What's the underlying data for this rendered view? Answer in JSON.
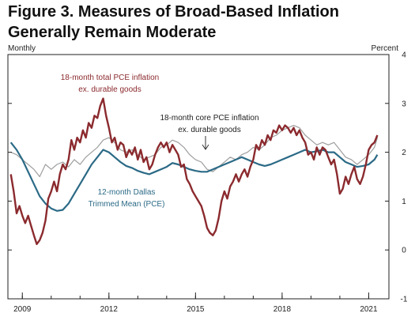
{
  "title_line1": "Figure 3. Measures of Broad-Based Inflation",
  "title_line2": "Generally Remain Moderate",
  "chart_data": {
    "type": "line",
    "left_unit": "Monthly",
    "right_unit": "Percent",
    "xlim": [
      2008.5,
      2021.7
    ],
    "ylim": [
      -1,
      4
    ],
    "y_ticks": [
      "4",
      "3",
      "2",
      "1",
      "0",
      "-1"
    ],
    "x_ticks": [
      {
        "label": "2009",
        "value": 2009.0
      },
      {
        "label": "2012",
        "value": 2012.0
      },
      {
        "label": "2015",
        "value": 2015.0
      },
      {
        "label": "2018",
        "value": 2018.0
      },
      {
        "label": "2021",
        "value": 2021.0
      }
    ],
    "annotations": {
      "total": [
        "18-month total PCE inflation",
        "ex. durable goods"
      ],
      "core": [
        "18-month core PCE inflation",
        "ex. durable goods"
      ],
      "dallas": [
        "12-month Dallas",
        "Trimmed Mean (PCE)"
      ]
    },
    "colors": {
      "total": "#8b2a2e",
      "core": "#9e9e9e",
      "dallas": "#2b6a86",
      "axis": "#222222"
    },
    "series": [
      {
        "key": "total",
        "points": [
          [
            2008.6,
            1.55
          ],
          [
            2008.7,
            1.2
          ],
          [
            2008.8,
            0.75
          ],
          [
            2008.9,
            0.9
          ],
          [
            2009.0,
            0.7
          ],
          [
            2009.1,
            0.55
          ],
          [
            2009.2,
            0.7
          ],
          [
            2009.3,
            0.5
          ],
          [
            2009.4,
            0.3
          ],
          [
            2009.5,
            0.12
          ],
          [
            2009.6,
            0.2
          ],
          [
            2009.7,
            0.35
          ],
          [
            2009.8,
            0.6
          ],
          [
            2009.9,
            1.05
          ],
          [
            2010.0,
            1.2
          ],
          [
            2010.1,
            1.4
          ],
          [
            2010.2,
            1.2
          ],
          [
            2010.3,
            1.55
          ],
          [
            2010.4,
            1.75
          ],
          [
            2010.5,
            1.65
          ],
          [
            2010.6,
            1.85
          ],
          [
            2010.7,
            2.25
          ],
          [
            2010.8,
            2.05
          ],
          [
            2010.9,
            2.3
          ],
          [
            2011.0,
            2.2
          ],
          [
            2011.1,
            2.45
          ],
          [
            2011.2,
            2.3
          ],
          [
            2011.3,
            2.6
          ],
          [
            2011.4,
            2.5
          ],
          [
            2011.5,
            2.75
          ],
          [
            2011.6,
            2.7
          ],
          [
            2011.7,
            2.95
          ],
          [
            2011.8,
            3.1
          ],
          [
            2011.9,
            2.75
          ],
          [
            2012.0,
            2.5
          ],
          [
            2012.1,
            2.2
          ],
          [
            2012.2,
            2.3
          ],
          [
            2012.3,
            2.05
          ],
          [
            2012.4,
            2.2
          ],
          [
            2012.5,
            2.15
          ],
          [
            2012.6,
            1.9
          ],
          [
            2012.7,
            2.05
          ],
          [
            2012.8,
            1.95
          ],
          [
            2012.9,
            2.1
          ],
          [
            2013.0,
            1.85
          ],
          [
            2013.1,
            2.05
          ],
          [
            2013.2,
            1.8
          ],
          [
            2013.3,
            1.9
          ],
          [
            2013.4,
            1.65
          ],
          [
            2013.5,
            1.75
          ],
          [
            2013.6,
            1.95
          ],
          [
            2013.7,
            2.1
          ],
          [
            2013.8,
            2.2
          ],
          [
            2013.9,
            2.1
          ],
          [
            2014.0,
            2.2
          ],
          [
            2014.1,
            2.0
          ],
          [
            2014.2,
            2.15
          ],
          [
            2014.3,
            2.05
          ],
          [
            2014.4,
            1.95
          ],
          [
            2014.5,
            1.7
          ],
          [
            2014.6,
            1.75
          ],
          [
            2014.7,
            1.45
          ],
          [
            2014.8,
            1.35
          ],
          [
            2014.9,
            1.2
          ],
          [
            2015.0,
            1.1
          ],
          [
            2015.1,
            1.0
          ],
          [
            2015.2,
            0.9
          ],
          [
            2015.3,
            0.7
          ],
          [
            2015.4,
            0.45
          ],
          [
            2015.5,
            0.35
          ],
          [
            2015.6,
            0.3
          ],
          [
            2015.7,
            0.4
          ],
          [
            2015.8,
            0.65
          ],
          [
            2015.9,
            1.0
          ],
          [
            2016.0,
            1.2
          ],
          [
            2016.1,
            1.05
          ],
          [
            2016.2,
            1.3
          ],
          [
            2016.3,
            1.4
          ],
          [
            2016.4,
            1.55
          ],
          [
            2016.5,
            1.4
          ],
          [
            2016.6,
            1.55
          ],
          [
            2016.7,
            1.65
          ],
          [
            2016.8,
            1.5
          ],
          [
            2016.9,
            1.7
          ],
          [
            2017.0,
            1.85
          ],
          [
            2017.1,
            2.15
          ],
          [
            2017.2,
            2.05
          ],
          [
            2017.3,
            2.25
          ],
          [
            2017.4,
            2.15
          ],
          [
            2017.5,
            2.35
          ],
          [
            2017.6,
            2.25
          ],
          [
            2017.7,
            2.45
          ],
          [
            2017.8,
            2.4
          ],
          [
            2017.9,
            2.55
          ],
          [
            2018.0,
            2.45
          ],
          [
            2018.1,
            2.55
          ],
          [
            2018.2,
            2.5
          ],
          [
            2018.3,
            2.4
          ],
          [
            2018.4,
            2.5
          ],
          [
            2018.5,
            2.35
          ],
          [
            2018.6,
            2.45
          ],
          [
            2018.7,
            2.3
          ],
          [
            2018.8,
            2.2
          ],
          [
            2018.9,
            1.95
          ],
          [
            2019.0,
            2.0
          ],
          [
            2019.1,
            1.85
          ],
          [
            2019.2,
            2.1
          ],
          [
            2019.3,
            1.95
          ],
          [
            2019.4,
            2.1
          ],
          [
            2019.5,
            2.05
          ],
          [
            2019.6,
            1.9
          ],
          [
            2019.7,
            1.75
          ],
          [
            2019.8,
            1.85
          ],
          [
            2019.9,
            1.55
          ],
          [
            2020.0,
            1.15
          ],
          [
            2020.1,
            1.25
          ],
          [
            2020.2,
            1.5
          ],
          [
            2020.3,
            1.35
          ],
          [
            2020.4,
            1.55
          ],
          [
            2020.5,
            1.7
          ],
          [
            2020.6,
            1.45
          ],
          [
            2020.7,
            1.35
          ],
          [
            2020.8,
            1.5
          ],
          [
            2020.9,
            1.75
          ],
          [
            2021.0,
            2.05
          ],
          [
            2021.1,
            2.15
          ],
          [
            2021.2,
            2.2
          ],
          [
            2021.3,
            2.35
          ]
        ]
      },
      {
        "key": "core",
        "points": [
          [
            2008.6,
            2.0
          ],
          [
            2008.8,
            1.95
          ],
          [
            2009.0,
            1.85
          ],
          [
            2009.2,
            1.75
          ],
          [
            2009.4,
            1.65
          ],
          [
            2009.6,
            1.5
          ],
          [
            2009.8,
            1.75
          ],
          [
            2010.0,
            1.65
          ],
          [
            2010.2,
            1.75
          ],
          [
            2010.4,
            1.8
          ],
          [
            2010.6,
            1.7
          ],
          [
            2010.8,
            1.85
          ],
          [
            2011.0,
            1.75
          ],
          [
            2011.2,
            1.9
          ],
          [
            2011.4,
            2.0
          ],
          [
            2011.6,
            2.1
          ],
          [
            2011.8,
            2.25
          ],
          [
            2012.0,
            2.3
          ],
          [
            2012.2,
            2.2
          ],
          [
            2012.4,
            2.05
          ],
          [
            2012.6,
            2.0
          ],
          [
            2012.8,
            2.05
          ],
          [
            2013.0,
            1.95
          ],
          [
            2013.2,
            1.85
          ],
          [
            2013.4,
            1.9
          ],
          [
            2013.6,
            1.95
          ],
          [
            2013.8,
            2.1
          ],
          [
            2014.0,
            2.15
          ],
          [
            2014.2,
            2.25
          ],
          [
            2014.4,
            2.2
          ],
          [
            2014.6,
            2.1
          ],
          [
            2014.8,
            1.95
          ],
          [
            2015.0,
            1.85
          ],
          [
            2015.2,
            1.8
          ],
          [
            2015.4,
            1.65
          ],
          [
            2015.6,
            1.6
          ],
          [
            2015.8,
            1.7
          ],
          [
            2016.0,
            1.8
          ],
          [
            2016.2,
            1.9
          ],
          [
            2016.4,
            1.85
          ],
          [
            2016.6,
            1.95
          ],
          [
            2016.8,
            2.0
          ],
          [
            2017.0,
            2.1
          ],
          [
            2017.2,
            2.05
          ],
          [
            2017.4,
            2.15
          ],
          [
            2017.6,
            2.3
          ],
          [
            2017.8,
            2.35
          ],
          [
            2018.0,
            2.45
          ],
          [
            2018.2,
            2.5
          ],
          [
            2018.4,
            2.55
          ],
          [
            2018.6,
            2.5
          ],
          [
            2018.8,
            2.35
          ],
          [
            2019.0,
            2.25
          ],
          [
            2019.2,
            2.15
          ],
          [
            2019.4,
            2.2
          ],
          [
            2019.6,
            2.15
          ],
          [
            2019.8,
            2.2
          ],
          [
            2020.0,
            2.05
          ],
          [
            2020.2,
            1.9
          ],
          [
            2020.4,
            1.85
          ],
          [
            2020.6,
            1.75
          ],
          [
            2020.8,
            1.85
          ],
          [
            2021.0,
            1.95
          ],
          [
            2021.2,
            2.1
          ],
          [
            2021.3,
            2.3
          ]
        ]
      },
      {
        "key": "dallas",
        "points": [
          [
            2008.6,
            2.2
          ],
          [
            2008.8,
            2.05
          ],
          [
            2009.0,
            1.85
          ],
          [
            2009.2,
            1.6
          ],
          [
            2009.4,
            1.35
          ],
          [
            2009.6,
            1.1
          ],
          [
            2009.8,
            0.95
          ],
          [
            2010.0,
            0.85
          ],
          [
            2010.2,
            0.8
          ],
          [
            2010.4,
            0.82
          ],
          [
            2010.6,
            0.95
          ],
          [
            2010.8,
            1.15
          ],
          [
            2011.0,
            1.35
          ],
          [
            2011.2,
            1.55
          ],
          [
            2011.4,
            1.75
          ],
          [
            2011.6,
            1.9
          ],
          [
            2011.8,
            2.05
          ],
          [
            2012.0,
            2.0
          ],
          [
            2012.2,
            1.9
          ],
          [
            2012.4,
            1.8
          ],
          [
            2012.6,
            1.72
          ],
          [
            2012.8,
            1.68
          ],
          [
            2013.0,
            1.62
          ],
          [
            2013.2,
            1.58
          ],
          [
            2013.4,
            1.55
          ],
          [
            2013.6,
            1.6
          ],
          [
            2013.8,
            1.65
          ],
          [
            2014.0,
            1.7
          ],
          [
            2014.2,
            1.78
          ],
          [
            2014.4,
            1.75
          ],
          [
            2014.6,
            1.7
          ],
          [
            2014.8,
            1.65
          ],
          [
            2015.0,
            1.62
          ],
          [
            2015.2,
            1.6
          ],
          [
            2015.4,
            1.6
          ],
          [
            2015.6,
            1.65
          ],
          [
            2015.8,
            1.7
          ],
          [
            2016.0,
            1.75
          ],
          [
            2016.2,
            1.8
          ],
          [
            2016.4,
            1.85
          ],
          [
            2016.6,
            1.9
          ],
          [
            2016.8,
            1.85
          ],
          [
            2017.0,
            1.8
          ],
          [
            2017.2,
            1.75
          ],
          [
            2017.4,
            1.72
          ],
          [
            2017.6,
            1.75
          ],
          [
            2017.8,
            1.8
          ],
          [
            2018.0,
            1.85
          ],
          [
            2018.2,
            1.9
          ],
          [
            2018.4,
            1.95
          ],
          [
            2018.6,
            2.0
          ],
          [
            2018.8,
            2.05
          ],
          [
            2019.0,
            2.0
          ],
          [
            2019.2,
            2.02
          ],
          [
            2019.4,
            2.05
          ],
          [
            2019.6,
            2.0
          ],
          [
            2019.8,
            2.0
          ],
          [
            2020.0,
            1.9
          ],
          [
            2020.2,
            1.8
          ],
          [
            2020.4,
            1.75
          ],
          [
            2020.6,
            1.7
          ],
          [
            2020.8,
            1.72
          ],
          [
            2021.0,
            1.75
          ],
          [
            2021.2,
            1.85
          ],
          [
            2021.3,
            1.95
          ]
        ]
      }
    ]
  }
}
